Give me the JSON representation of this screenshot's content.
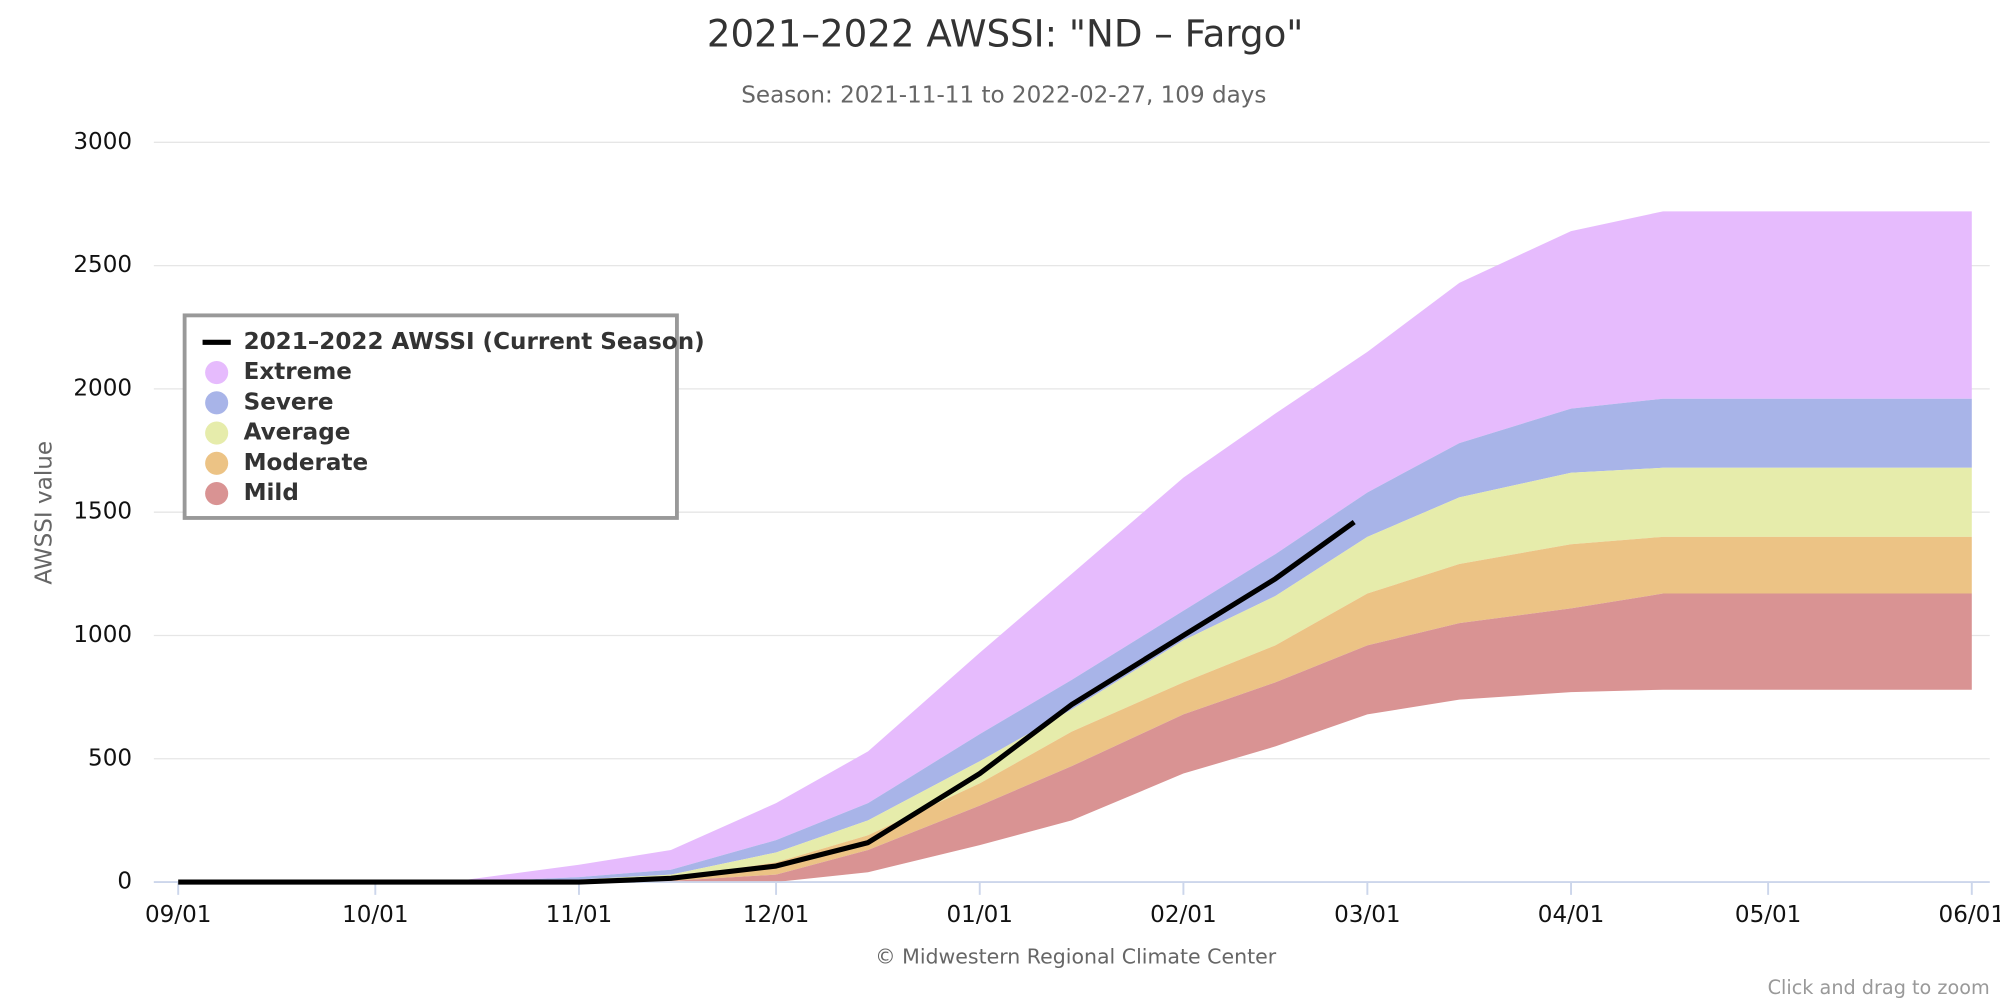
{
  "chart_data": {
    "type": "arearange",
    "title": "2021–2022 AWSSI: \"ND – Fargo\"",
    "subtitle": "Season: 2021-11-11 to 2022-02-27, 109 days",
    "y_label": "AWSSI value",
    "credit": "© Midwestern Regional Climate Center",
    "zoom_hint": "Click and drag to zoom",
    "x": [
      "09/01",
      "10/01",
      "10/15",
      "11/01",
      "11/15",
      "12/01",
      "12/15",
      "01/01",
      "01/15",
      "02/01",
      "02/15",
      "03/01",
      "03/15",
      "04/01",
      "04/15",
      "05/01",
      "05/15",
      "06/01"
    ],
    "xlim": [
      "09/01",
      "06/01"
    ],
    "xticks": [
      "09/01",
      "10/01",
      "11/01",
      "12/01",
      "01/01",
      "02/01",
      "03/01",
      "04/01",
      "05/01",
      "06/01"
    ],
    "ylim": [
      0,
      3000
    ],
    "yticks": [
      0,
      500,
      1000,
      1500,
      2000,
      2500,
      3000
    ],
    "grid": true,
    "legend": "left",
    "line": {
      "name": "2021–2022 AWSSI (Current Season)",
      "color": "#000000",
      "x": [
        "09/01",
        "10/01",
        "11/01",
        "11/15",
        "12/01",
        "12/15",
        "01/01",
        "01/15",
        "02/01",
        "02/15",
        "02/27"
      ],
      "values": [
        0,
        0,
        0,
        15,
        65,
        160,
        440,
        720,
        1000,
        1230,
        1460
      ]
    },
    "series": [
      {
        "name": "Extreme",
        "color": "#e6bbfd",
        "low": [
          0,
          0,
          0,
          20,
          50,
          170,
          320,
          600,
          820,
          1100,
          1330,
          1580,
          1780,
          1920,
          1960,
          1960,
          1960,
          1960
        ],
        "high": [
          0,
          0,
          10,
          70,
          130,
          320,
          530,
          930,
          1250,
          1640,
          1900,
          2150,
          2430,
          2640,
          2720,
          2720,
          2720,
          2720
        ]
      },
      {
        "name": "Severe",
        "color": "#a8b4e8",
        "low": [
          0,
          0,
          0,
          10,
          30,
          120,
          250,
          490,
          700,
          980,
          1160,
          1400,
          1560,
          1660,
          1680,
          1680,
          1680,
          1680
        ],
        "high": [
          0,
          0,
          0,
          20,
          50,
          170,
          320,
          600,
          820,
          1100,
          1330,
          1580,
          1780,
          1920,
          1960,
          1960,
          1960,
          1960
        ]
      },
      {
        "name": "Average",
        "color": "#e6ecab",
        "low": [
          0,
          0,
          0,
          0,
          15,
          80,
          190,
          400,
          610,
          810,
          960,
          1170,
          1290,
          1370,
          1400,
          1400,
          1400,
          1400
        ],
        "high": [
          0,
          0,
          0,
          10,
          30,
          120,
          250,
          490,
          700,
          980,
          1160,
          1400,
          1560,
          1660,
          1680,
          1680,
          1680,
          1680
        ]
      },
      {
        "name": "Moderate",
        "color": "#ecc385",
        "low": [
          0,
          0,
          0,
          0,
          5,
          30,
          130,
          310,
          470,
          680,
          810,
          960,
          1050,
          1110,
          1170,
          1170,
          1170,
          1170
        ],
        "high": [
          0,
          0,
          0,
          0,
          15,
          80,
          190,
          400,
          610,
          810,
          960,
          1170,
          1290,
          1370,
          1400,
          1400,
          1400,
          1400
        ]
      },
      {
        "name": "Mild",
        "color": "#d99393",
        "low": [
          0,
          0,
          0,
          0,
          0,
          0,
          40,
          150,
          250,
          440,
          550,
          680,
          740,
          770,
          780,
          780,
          780,
          780
        ],
        "high": [
          0,
          0,
          0,
          0,
          5,
          30,
          130,
          310,
          470,
          680,
          810,
          960,
          1050,
          1110,
          1170,
          1170,
          1170,
          1170
        ]
      }
    ]
  }
}
